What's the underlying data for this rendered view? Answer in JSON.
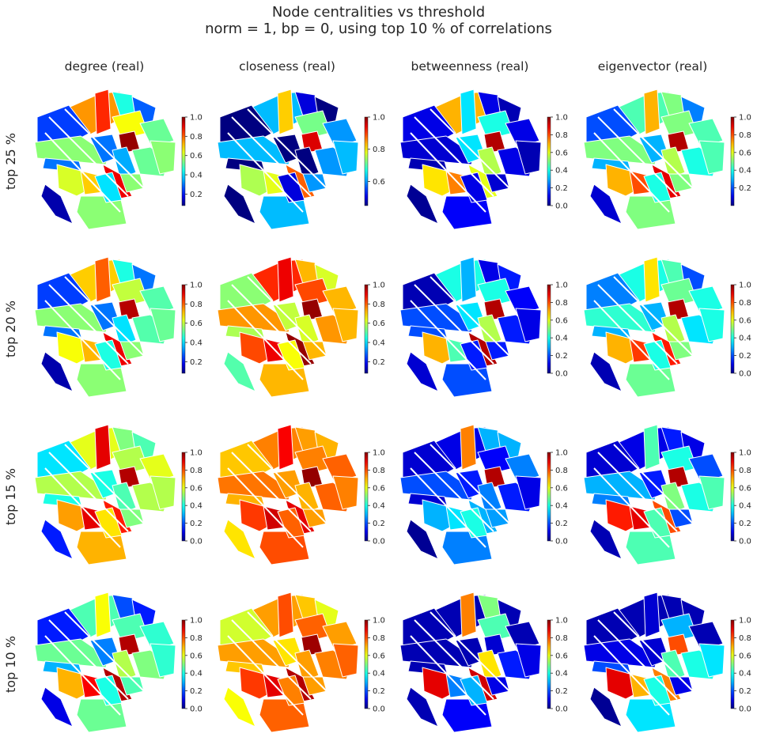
{
  "title": "Node centralities vs threshold",
  "subtitle": "norm = 1,   bp = 0,   using top 10 % of correlations",
  "colormap": "jet",
  "outline_color": "#ffffff",
  "column_titles": [
    "degree (real)",
    "closeness (real)",
    "betweenness (real)",
    "eigenvector (real)"
  ],
  "row_labels": [
    "top 25 %",
    "top 20 %",
    "top 15 %",
    "top 10 %"
  ],
  "chart_data": [
    {
      "type": "heatmap",
      "row_label": "top 25 %",
      "title": "degree (real)",
      "colorbar": {
        "range": [
          0.08,
          1.0
        ],
        "ticks": [
          "0.2",
          "0.4",
          "0.6",
          "0.8",
          "1.0"
        ]
      },
      "parcel_values": [
        0.75,
        0.85,
        0.45,
        0.28,
        0.25,
        0.65,
        0.98,
        0.52,
        0.55,
        0.3,
        0.35,
        0.52,
        0.55,
        0.3,
        0.62,
        0.7,
        0.9,
        0.55,
        0.4,
        0.12,
        0.55
      ]
    },
    {
      "type": "heatmap",
      "row_label": "top 25 %",
      "title": "closeness (real)",
      "colorbar": {
        "range": [
          0.45,
          1.0
        ],
        "ticks": [
          "0.6",
          "0.8",
          "1.0"
        ]
      },
      "parcel_values": [
        0.62,
        0.82,
        0.5,
        0.4,
        0.35,
        0.72,
        0.95,
        0.6,
        0.62,
        0.38,
        0.42,
        0.6,
        0.62,
        0.38,
        0.75,
        0.78,
        0.88,
        0.62,
        0.5,
        0.3,
        0.6
      ]
    },
    {
      "type": "heatmap",
      "row_label": "top 25 %",
      "title": "betweenness (real)",
      "colorbar": {
        "range": [
          0.0,
          1.0
        ],
        "ticks": [
          "0.0",
          "0.2",
          "0.4",
          "0.6",
          "0.8",
          "1.0"
        ]
      },
      "parcel_values": [
        0.7,
        0.35,
        0.1,
        0.05,
        0.1,
        0.4,
        0.95,
        0.1,
        0.08,
        0.35,
        0.55,
        0.1,
        0.05,
        0.05,
        0.65,
        0.75,
        0.6,
        0.12,
        0.1,
        0.02,
        0.08
      ]
    },
    {
      "type": "heatmap",
      "row_label": "top 25 %",
      "title": "eigenvector (real)",
      "colorbar": {
        "range": [
          0.0,
          1.0
        ],
        "ticks": [
          "0.2",
          "0.4",
          "0.6",
          "0.8",
          "1.0"
        ]
      },
      "parcel_values": [
        0.45,
        0.7,
        0.5,
        0.25,
        0.2,
        0.5,
        0.95,
        0.45,
        0.5,
        0.3,
        0.55,
        0.4,
        0.45,
        0.3,
        0.7,
        0.8,
        0.9,
        0.5,
        0.4,
        0.08,
        0.5
      ]
    },
    {
      "type": "heatmap",
      "row_label": "top 20 %",
      "title": "degree (real)",
      "colorbar": {
        "range": [
          0.08,
          1.0
        ],
        "ticks": [
          "0.2",
          "0.4",
          "0.6",
          "0.8",
          "1.0"
        ]
      },
      "parcel_values": [
        0.7,
        0.8,
        0.45,
        0.3,
        0.25,
        0.6,
        0.95,
        0.5,
        0.55,
        0.3,
        0.4,
        0.5,
        0.52,
        0.3,
        0.65,
        0.72,
        0.9,
        0.55,
        0.45,
        0.12,
        0.55
      ]
    },
    {
      "type": "heatmap",
      "row_label": "top 20 %",
      "title": "closeness (real)",
      "colorbar": {
        "range": [
          0.08,
          1.0
        ],
        "ticks": [
          "0.2",
          "0.4",
          "0.6",
          "0.8",
          "1.0"
        ]
      },
      "parcel_values": [
        0.85,
        0.9,
        0.72,
        0.62,
        0.55,
        0.82,
        0.98,
        0.72,
        0.75,
        0.6,
        0.62,
        0.75,
        0.72,
        0.58,
        0.82,
        0.9,
        0.98,
        0.72,
        0.65,
        0.5,
        0.72
      ]
    },
    {
      "type": "heatmap",
      "row_label": "top 20 %",
      "title": "betweenness (real)",
      "colorbar": {
        "range": [
          0.0,
          1.0
        ],
        "ticks": [
          "0.0",
          "0.2",
          "0.4",
          "0.6",
          "0.8",
          "1.0"
        ]
      },
      "parcel_values": [
        0.4,
        0.3,
        0.1,
        0.15,
        0.05,
        0.4,
        0.95,
        0.12,
        0.2,
        0.35,
        0.55,
        0.15,
        0.1,
        0.2,
        0.7,
        0.45,
        0.95,
        0.2,
        0.15,
        0.08,
        0.15
      ]
    },
    {
      "type": "heatmap",
      "row_label": "top 20 %",
      "title": "eigenvector (real)",
      "colorbar": {
        "range": [
          0.0,
          1.0
        ],
        "ticks": [
          "0.0",
          "0.2",
          "0.4",
          "0.6",
          "0.8",
          "1.0"
        ]
      },
      "parcel_values": [
        0.4,
        0.65,
        0.45,
        0.2,
        0.25,
        0.48,
        0.95,
        0.4,
        0.42,
        0.3,
        0.55,
        0.35,
        0.4,
        0.3,
        0.7,
        0.82,
        0.85,
        0.48,
        0.4,
        0.05,
        0.5
      ]
    },
    {
      "type": "heatmap",
      "row_label": "top 15 %",
      "title": "degree (real)",
      "colorbar": {
        "range": [
          0.0,
          1.0
        ],
        "ticks": [
          "0.0",
          "0.2",
          "0.4",
          "0.6",
          "0.8",
          "1.0"
        ]
      },
      "parcel_values": [
        0.6,
        0.9,
        0.5,
        0.45,
        0.35,
        0.55,
        0.95,
        0.6,
        0.55,
        0.4,
        0.45,
        0.55,
        0.55,
        0.4,
        0.72,
        0.9,
        0.85,
        0.7,
        0.65,
        0.15,
        0.5
      ]
    },
    {
      "type": "heatmap",
      "row_label": "top 15 %",
      "title": "closeness (real)",
      "colorbar": {
        "range": [
          0.0,
          1.0
        ],
        "ticks": [
          "0.0",
          "0.2",
          "0.4",
          "0.6",
          "0.8",
          "1.0"
        ]
      },
      "parcel_values": [
        0.75,
        0.88,
        0.72,
        0.7,
        0.68,
        0.75,
        0.98,
        0.78,
        0.76,
        0.72,
        0.7,
        0.78,
        0.75,
        0.7,
        0.82,
        0.92,
        0.9,
        0.8,
        0.78,
        0.65,
        0.72
      ]
    },
    {
      "type": "heatmap",
      "row_label": "top 15 %",
      "title": "betweenness (real)",
      "colorbar": {
        "range": [
          0.0,
          1.0
        ],
        "ticks": [
          "0.0",
          "0.2",
          "0.4",
          "0.6",
          "0.8",
          "1.0"
        ]
      },
      "parcel_values": [
        0.1,
        0.75,
        0.3,
        0.3,
        0.08,
        0.12,
        0.95,
        0.25,
        0.2,
        0.15,
        0.25,
        0.15,
        0.1,
        0.08,
        0.3,
        0.35,
        0.3,
        0.25,
        0.4,
        0.02,
        0.28
      ]
    },
    {
      "type": "heatmap",
      "row_label": "top 15 %",
      "title": "eigenvector (real)",
      "colorbar": {
        "range": [
          0.0,
          1.0
        ],
        "ticks": [
          "0.0",
          "0.2",
          "0.4",
          "0.6",
          "0.8",
          "1.0"
        ]
      },
      "parcel_values": [
        0.1,
        0.45,
        0.15,
        0.1,
        0.08,
        0.4,
        0.95,
        0.2,
        0.3,
        0.15,
        0.5,
        0.4,
        0.45,
        0.25,
        0.85,
        0.9,
        0.8,
        0.45,
        0.45,
        0.05,
        0.2
      ]
    },
    {
      "type": "heatmap",
      "row_label": "top 10 %",
      "title": "degree (real)",
      "colorbar": {
        "range": [
          0.0,
          1.0
        ],
        "ticks": [
          "0.0",
          "0.2",
          "0.4",
          "0.6",
          "0.8",
          "1.0"
        ]
      },
      "parcel_values": [
        0.45,
        0.62,
        0.2,
        0.15,
        0.15,
        0.45,
        0.95,
        0.42,
        0.48,
        0.25,
        0.55,
        0.5,
        0.42,
        0.3,
        0.7,
        0.88,
        0.95,
        0.48,
        0.4,
        0.1,
        0.45
      ]
    },
    {
      "type": "heatmap",
      "row_label": "top 10 %",
      "title": "closeness (real)",
      "colorbar": {
        "range": [
          0.0,
          1.0
        ],
        "ticks": [
          "0.0",
          "0.2",
          "0.4",
          "0.6",
          "0.8",
          "1.0"
        ]
      },
      "parcel_values": [
        0.72,
        0.8,
        0.68,
        0.6,
        0.58,
        0.78,
        0.97,
        0.72,
        0.72,
        0.65,
        0.72,
        0.75,
        0.78,
        0.68,
        0.82,
        0.9,
        0.95,
        0.78,
        0.75,
        0.62,
        0.72
      ]
    },
    {
      "type": "heatmap",
      "row_label": "top 10 %",
      "title": "betweenness (real)",
      "colorbar": {
        "range": [
          0.0,
          1.0
        ],
        "ticks": [
          "0.0",
          "0.2",
          "0.4",
          "0.6",
          "0.8",
          "1.0"
        ]
      },
      "parcel_values": [
        0.05,
        0.75,
        0.5,
        0.05,
        0.05,
        0.45,
        0.08,
        0.05,
        0.05,
        0.05,
        0.65,
        0.15,
        0.1,
        0.05,
        0.9,
        0.25,
        0.92,
        0.12,
        0.3,
        0.05,
        0.1
      ]
    },
    {
      "type": "heatmap",
      "row_label": "top 10 %",
      "title": "eigenvector (real)",
      "colorbar": {
        "range": [
          0.0,
          1.0
        ],
        "ticks": [
          "0.0",
          "0.2",
          "0.4",
          "0.6",
          "0.8",
          "1.0"
        ]
      },
      "parcel_values": [
        0.05,
        0.08,
        0.05,
        0.05,
        0.05,
        0.3,
        0.8,
        0.05,
        0.1,
        0.08,
        0.45,
        0.4,
        0.35,
        0.2,
        0.9,
        0.7,
        0.75,
        0.35,
        0.4,
        0.02,
        0.1
      ]
    }
  ]
}
